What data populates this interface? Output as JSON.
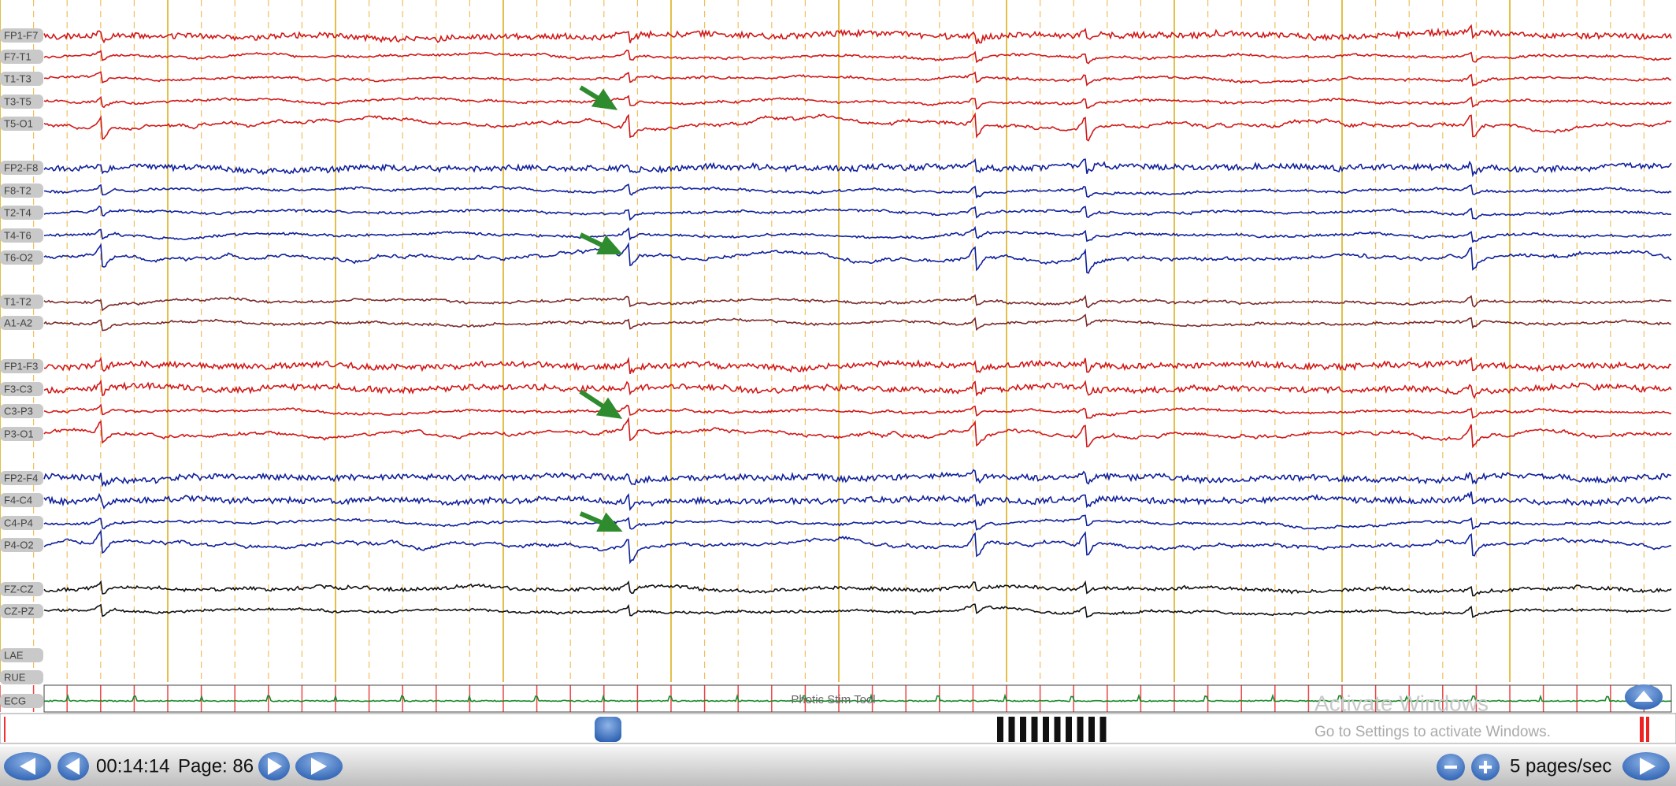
{
  "channels": [
    {
      "label": "FP1-F7",
      "color": "#d01818"
    },
    {
      "label": "F7-T1",
      "color": "#d01818"
    },
    {
      "label": "T1-T3",
      "color": "#d01818"
    },
    {
      "label": "T3-T5",
      "color": "#d01818"
    },
    {
      "label": "T5-O1",
      "color": "#d01818"
    },
    {
      "label": "FP2-F8",
      "color": "#10209a"
    },
    {
      "label": "F8-T2",
      "color": "#10209a"
    },
    {
      "label": "T2-T4",
      "color": "#10209a"
    },
    {
      "label": "T4-T6",
      "color": "#10209a"
    },
    {
      "label": "T6-O2",
      "color": "#10209a"
    },
    {
      "label": "T1-T2",
      "color": "#7a2a2a"
    },
    {
      "label": "A1-A2",
      "color": "#7a2a2a"
    },
    {
      "label": "FP1-F3",
      "color": "#d01818"
    },
    {
      "label": "F3-C3",
      "color": "#d01818"
    },
    {
      "label": "C3-P3",
      "color": "#d01818"
    },
    {
      "label": "P3-O1",
      "color": "#d01818"
    },
    {
      "label": "FP2-F4",
      "color": "#10209a"
    },
    {
      "label": "F4-C4",
      "color": "#10209a"
    },
    {
      "label": "C4-P4",
      "color": "#10209a"
    },
    {
      "label": "P4-O2",
      "color": "#10209a"
    },
    {
      "label": "FZ-CZ",
      "color": "#111111"
    },
    {
      "label": "CZ-PZ",
      "color": "#111111"
    },
    {
      "label": "LAE",
      "color": "#111111"
    },
    {
      "label": "RUE",
      "color": "#111111"
    },
    {
      "label": "ECG",
      "color": "#1a8a2a"
    }
  ],
  "photic_tool": "Photic Stim Tool",
  "watermark": {
    "title": "Activate Windows",
    "subtitle": "Go to Settings to activate Windows."
  },
  "toolbar": {
    "time": "00:14:14",
    "page": "Page: 86",
    "speed": "5 pages/sec"
  }
}
